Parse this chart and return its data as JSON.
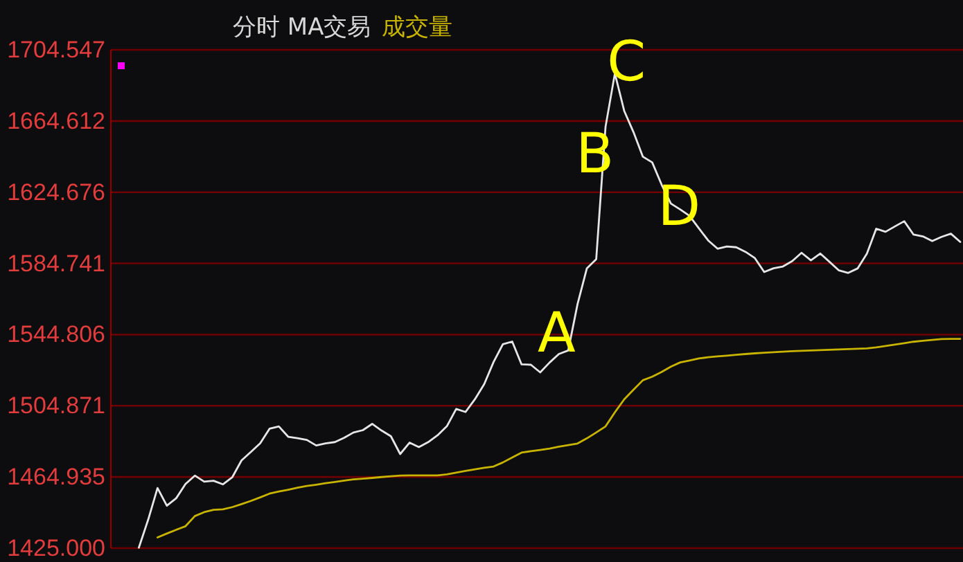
{
  "chart_data": {
    "type": "line",
    "title": "分时 MA交易",
    "grid": "y",
    "tick_labels": "y",
    "categories": [
      null,
      null,
      null,
      null,
      null,
      null,
      null,
      null,
      null,
      null,
      null,
      null,
      null,
      null,
      null,
      null,
      null,
      null,
      null,
      null,
      null,
      null,
      null,
      null,
      null,
      null,
      null,
      null,
      null,
      null,
      null,
      null,
      null,
      null,
      null,
      null,
      null,
      null,
      null,
      null,
      null,
      null,
      null,
      null,
      null,
      null,
      null,
      null,
      null,
      null,
      null,
      null,
      null,
      null,
      null,
      null,
      null,
      null,
      null,
      null,
      null,
      null,
      null,
      null,
      null,
      null,
      null,
      null,
      null,
      null,
      null,
      null,
      null,
      null,
      null,
      null,
      null,
      null,
      null,
      null,
      null,
      null,
      null,
      null,
      null,
      null,
      null,
      null,
      null,
      null,
      null,
      null
    ],
    "ylim": [
      1425.0,
      1704.547
    ],
    "yticks": [
      {
        "value": 1425.0,
        "label": "1425.000"
      },
      {
        "value": 1464.935,
        "label": "1464.935"
      },
      {
        "value": 1504.871,
        "label": "1504.871"
      },
      {
        "value": 1544.806,
        "label": "1544.806"
      },
      {
        "value": 1584.741,
        "label": "1584.741"
      },
      {
        "value": 1624.676,
        "label": "1624.676"
      },
      {
        "value": 1664.612,
        "label": "1664.612"
      },
      {
        "value": 1704.547,
        "label": "1704.547"
      }
    ],
    "series": [
      {
        "color": "#e6e6e6",
        "values": [
          null,
          null,
          null,
          1425.3,
          1441,
          1458.7,
          1448.8,
          1453,
          1461,
          1465.7,
          1462.3,
          1462.8,
          1460.8,
          1464.7,
          1474.2,
          1479,
          1483.8,
          1492,
          1493.3,
          1487.5,
          1486.7,
          1485.7,
          1482.6,
          1483.8,
          1484.5,
          1486.9,
          1489.9,
          1491.2,
          1494.7,
          1491,
          1487.8,
          1477.8,
          1484.2,
          1481.7,
          1484.5,
          1488.3,
          1493.4,
          1503.1,
          1501.4,
          1508.5,
          1517,
          1529.4,
          1539.4,
          1540.9,
          1528.1,
          1527.9,
          1523.6,
          1529.1,
          1533.9,
          1535.9,
          1561.9,
          1582,
          1587.1,
          1661.4,
          1691.3,
          1670.3,
          1658.3,
          1644.6,
          1641.4,
          1629,
          1618.3,
          1615,
          1611.4,
          1604.4,
          1597.6,
          1593,
          1594.2,
          1593.8,
          1591.2,
          1587.7,
          1579.9,
          1582,
          1583,
          1586,
          1590.7,
          1586.5,
          1590.3,
          1585.6,
          1580.8,
          1579.4,
          1581.9,
          1590.2,
          1604.2,
          1602.5,
          1605.5,
          1608.4,
          1600.9,
          1599.9,
          1597.3,
          1599.6,
          1601.4,
          1596.8
        ]
      },
      {
        "name": "成交量",
        "color": "#c8b400",
        "values": [
          null,
          null,
          null,
          null,
          null,
          1431.0,
          1433.2,
          1435.3,
          1437.3,
          1443.0,
          1445.2,
          1446.5,
          1446.8,
          1448.0,
          1449.7,
          1451.5,
          1453.5,
          1455.6,
          1456.8,
          1457.8,
          1458.9,
          1459.9,
          1460.6,
          1461.4,
          1462.1,
          1462.9,
          1463.6,
          1464.0,
          1464.4,
          1464.9,
          1465.3,
          1465.7,
          1465.8,
          1465.8,
          1465.8,
          1465.8,
          1466.4,
          1467.4,
          1468.3,
          1469.2,
          1470.1,
          1470.8,
          1473.1,
          1475.9,
          1478.6,
          1479.4,
          1480.1,
          1480.9,
          1481.9,
          1482.8,
          1483.7,
          1486.6,
          1489.9,
          1493.3,
          1501.2,
          1508.5,
          1513.9,
          1519.2,
          1521.2,
          1523.8,
          1526.8,
          1529.2,
          1530.3,
          1531.4,
          1532.1,
          1532.6,
          1533.0,
          1533.5,
          1533.9,
          1534.3,
          1534.6,
          1534.9,
          1535.2,
          1535.5,
          1535.7,
          1535.9,
          1536.1,
          1536.3,
          1536.5,
          1536.7,
          1536.9,
          1537.1,
          1537.6,
          1538.4,
          1539.2,
          1540.0,
          1540.8,
          1541.3,
          1541.8,
          1542.3,
          1542.4,
          1542.4
        ]
      }
    ],
    "annotations": [
      "A",
      "B",
      "C",
      "D"
    ]
  }
}
